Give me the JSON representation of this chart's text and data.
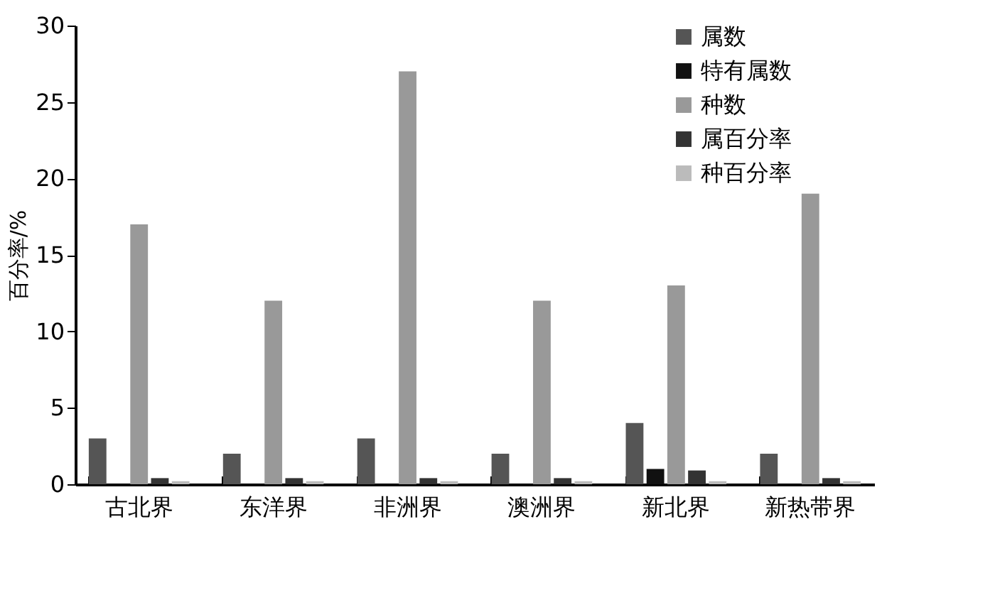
{
  "chart_data": {
    "type": "bar",
    "ylabel": "百分率/%",
    "categories": [
      "古北界",
      "东洋界",
      "非洲界",
      "澳洲界",
      "新北界",
      "新热带界"
    ],
    "series": [
      {
        "name": "属数",
        "color": "#555555",
        "values": [
          3,
          2,
          3,
          2,
          4,
          2
        ]
      },
      {
        "name": "特有属数",
        "color": "#111111",
        "values": [
          0,
          0,
          0,
          0,
          1,
          0
        ]
      },
      {
        "name": "种数",
        "color": "#999999",
        "values": [
          17,
          12,
          27,
          12,
          13,
          19
        ]
      },
      {
        "name": "属百分率",
        "color": "#333333",
        "values": [
          0.4,
          0.4,
          0.4,
          0.4,
          0.9,
          0.4
        ]
      },
      {
        "name": "种百分率",
        "color": "#bbbbbb",
        "values": [
          0.2,
          0.2,
          0.2,
          0.2,
          0.2,
          0.2
        ]
      }
    ],
    "ylim": [
      0,
      30
    ],
    "yticks": [
      0,
      5,
      10,
      15,
      20,
      25,
      30
    ],
    "grid": false,
    "legend": "top right"
  }
}
